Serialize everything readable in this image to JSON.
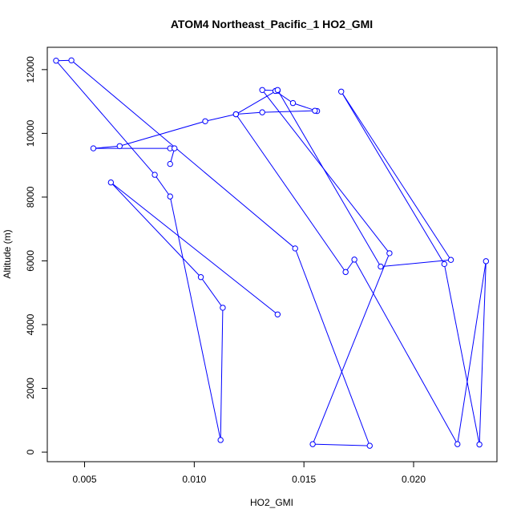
{
  "chart_data": {
    "type": "line",
    "title": "ATOM4 Northeast_Pacific_1 HO2_GMI",
    "xlabel": "HO2_GMI",
    "ylabel": "Altitude (m)",
    "xlim": [
      0.0033,
      0.0238
    ],
    "ylim": [
      -300,
      12700
    ],
    "xticks": [
      0.005,
      0.01,
      0.015,
      0.02
    ],
    "xtick_labels": [
      "0.005",
      "0.010",
      "0.015",
      "0.020"
    ],
    "yticks": [
      0,
      2000,
      4000,
      6000,
      8000,
      10000,
      12000
    ],
    "ytick_labels": [
      "0",
      "2000",
      "4000",
      "6000",
      "8000",
      "10000",
      "12000"
    ],
    "grid": false,
    "series": [
      {
        "color": "#0000ff",
        "marker": "open-circle",
        "x": [
          0.0138,
          0.0062,
          0.0103,
          0.0113,
          0.0112,
          0.0089,
          0.0082,
          0.0037,
          0.0044,
          0.0146,
          0.018,
          0.0154,
          0.0189,
          0.0131,
          0.0138,
          0.0137,
          0.0145,
          0.0156,
          0.0155,
          0.0131,
          0.0119,
          0.0169,
          0.0173,
          0.022,
          0.0233,
          0.023,
          0.0214,
          0.0167,
          0.0217,
          0.0185,
          0.0138,
          0.0119,
          0.0105,
          0.0066,
          0.0054,
          0.0089,
          0.0091,
          0.0089
        ],
        "y": [
          4320,
          8460,
          5490,
          4530,
          380,
          8020,
          8700,
          12280,
          12290,
          6390,
          200,
          250,
          6240,
          11360,
          11340,
          11330,
          10950,
          10700,
          10710,
          10660,
          10600,
          5650,
          6040,
          250,
          5990,
          240,
          5900,
          11310,
          6030,
          5820,
          11360,
          10600,
          10380,
          9600,
          9530,
          9530,
          9530,
          9040
        ]
      }
    ]
  }
}
